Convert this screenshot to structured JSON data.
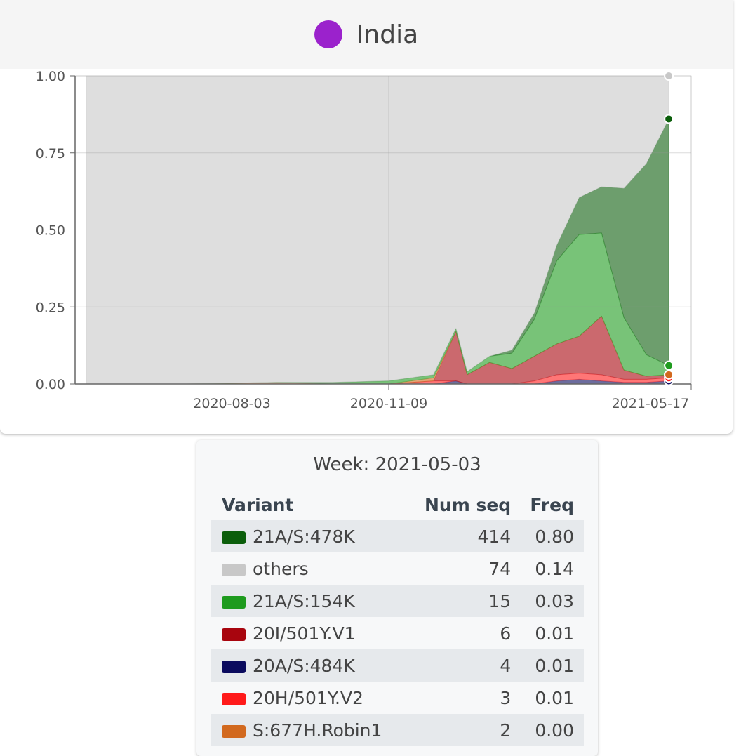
{
  "header": {
    "title": "India",
    "color": "#9b22cc"
  },
  "chart_data": {
    "type": "stacked-area",
    "x": [
      "2020-05-04",
      "2020-07-06",
      "2020-08-31",
      "2020-10-05",
      "2020-11-09",
      "2020-12-07",
      "2020-12-21",
      "2020-12-28",
      "2021-01-11",
      "2021-01-25",
      "2021-02-08",
      "2021-02-22",
      "2021-03-08",
      "2021-03-22",
      "2021-04-05",
      "2021-04-19",
      "2021-05-03"
    ],
    "series": [
      {
        "color": "#0b0b5e",
        "values": [
          0,
          0,
          0,
          0,
          0,
          0,
          0.01,
          0,
          0,
          0,
          0,
          0.01,
          0.015,
          0.01,
          0.005,
          0.005,
          0.01
        ]
      },
      {
        "color": "#ff1a1a",
        "values": [
          0,
          0,
          0,
          0,
          0,
          0.01,
          0,
          0,
          0,
          0,
          0.01,
          0.02,
          0.02,
          0.02,
          0.01,
          0.01,
          0.01
        ]
      },
      {
        "color": "#a8050e",
        "values": [
          0,
          0,
          0,
          0,
          0,
          0,
          0.16,
          0.03,
          0.07,
          0.05,
          0.08,
          0.1,
          0.12,
          0.19,
          0.03,
          0.01,
          0.01
        ]
      },
      {
        "color": "#d2691e",
        "values": [
          0,
          0,
          0.005,
          0,
          0,
          0.01,
          0,
          0,
          0,
          0,
          0,
          0,
          0,
          0,
          0,
          0,
          0
        ]
      },
      {
        "color": "#1e9b1e",
        "values": [
          0,
          0,
          0,
          0.005,
          0.01,
          0.01,
          0.01,
          0.01,
          0.02,
          0.05,
          0.12,
          0.27,
          0.33,
          0.27,
          0.17,
          0.07,
          0.03
        ]
      },
      {
        "color": "#0b5e0b",
        "values": [
          0,
          0,
          0,
          0,
          0,
          0,
          0,
          0,
          0,
          0.01,
          0.02,
          0.05,
          0.12,
          0.15,
          0.42,
          0.62,
          0.8
        ]
      },
      {
        "color": "#c8c8c8",
        "values": [
          1,
          1,
          0.995,
          0.995,
          0.99,
          0.97,
          0.82,
          0.96,
          0.91,
          0.89,
          0.77,
          0.55,
          0.395,
          0.36,
          0.365,
          0.285,
          0.14
        ]
      }
    ],
    "xlim": [
      "2020-04-27",
      "2021-05-17"
    ],
    "xticks": [
      "2020-08-03",
      "2020-11-09",
      "2021-05-17"
    ],
    "ylim": [
      0,
      1
    ],
    "yticks": [
      {
        "value": 0,
        "label": "0.00"
      },
      {
        "value": 0.25,
        "label": "0.25"
      },
      {
        "value": 0.5,
        "label": "0.50"
      },
      {
        "value": 0.75,
        "label": "0.75"
      },
      {
        "value": 1,
        "label": "1.00"
      }
    ],
    "grid": true
  },
  "tooltip": {
    "title": "Week: 2021-05-03",
    "columns": [
      "Variant",
      "Num seq",
      "Freq"
    ],
    "rows": [
      {
        "variant": "21A/S:478K",
        "color": "#0b5e0b",
        "num_seq": 414,
        "freq": "0.80"
      },
      {
        "variant": "others",
        "color": "#c8c8c8",
        "num_seq": 74,
        "freq": "0.14"
      },
      {
        "variant": "21A/S:154K",
        "color": "#1e9b1e",
        "num_seq": 15,
        "freq": "0.03"
      },
      {
        "variant": "20I/501Y.V1",
        "color": "#a8050e",
        "num_seq": 6,
        "freq": "0.01"
      },
      {
        "variant": "20A/S:484K",
        "color": "#0b0b5e",
        "num_seq": 4,
        "freq": "0.01"
      },
      {
        "variant": "20H/501Y.V2",
        "color": "#ff1a1a",
        "num_seq": 3,
        "freq": "0.01"
      },
      {
        "variant": "S:677H.Robin1",
        "color": "#d2691e",
        "num_seq": 2,
        "freq": "0.00"
      }
    ]
  }
}
